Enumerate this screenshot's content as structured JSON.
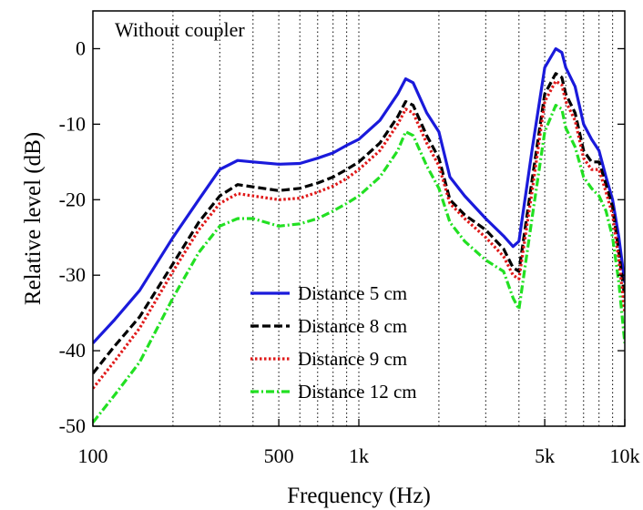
{
  "chart_data": {
    "type": "line",
    "title": "",
    "annotation": "Without coupler",
    "xlabel": "Frequency (Hz)",
    "ylabel": "Relative level (dB)",
    "x_scale": "log",
    "xlim": [
      100,
      10000
    ],
    "ylim": [
      -50,
      5
    ],
    "x_ticks": [
      {
        "value": 100,
        "label": "100"
      },
      {
        "value": 500,
        "label": "500"
      },
      {
        "value": 1000,
        "label": "1k"
      },
      {
        "value": 5000,
        "label": "5k"
      },
      {
        "value": 10000,
        "label": "10k"
      }
    ],
    "y_ticks": [
      {
        "value": 0,
        "label": "0"
      },
      {
        "value": -10,
        "label": "-10"
      },
      {
        "value": -20,
        "label": "-20"
      },
      {
        "value": -30,
        "label": "-30"
      },
      {
        "value": -40,
        "label": "-40"
      },
      {
        "value": -50,
        "label": "-50"
      }
    ],
    "grid": "vertical dotted at 100 Hz multiples",
    "grid_x": [
      200,
      300,
      400,
      500,
      600,
      700,
      800,
      900,
      1000,
      2000,
      3000,
      4000,
      5000,
      6000,
      7000,
      8000,
      9000
    ],
    "legend_position": "center-bottom",
    "series": [
      {
        "name": "Distance 5 cm",
        "color": "#1a1adb",
        "dash": "solid",
        "x": [
          100,
          120,
          150,
          200,
          250,
          300,
          350,
          400,
          500,
          600,
          700,
          800,
          900,
          1000,
          1200,
          1400,
          1500,
          1600,
          1800,
          2000,
          2200,
          2500,
          3000,
          3500,
          3800,
          4000,
          4500,
          5000,
          5500,
          5800,
          6000,
          6500,
          7000,
          7500,
          8000,
          8500,
          9000,
          9500,
          10000
        ],
        "y": [
          -39,
          -36,
          -32,
          -25,
          -20,
          -16,
          -14.8,
          -15,
          -15.3,
          -15.2,
          -14.5,
          -13.8,
          -12.8,
          -12,
          -9.5,
          -6,
          -4,
          -4.5,
          -8.5,
          -11,
          -17,
          -19.5,
          -22.5,
          -24.8,
          -26.2,
          -25.5,
          -13,
          -2.5,
          0,
          -0.5,
          -2.5,
          -5,
          -10,
          -12,
          -13.5,
          -17,
          -20,
          -25,
          -31
        ]
      },
      {
        "name": "Distance 8 cm",
        "color": "#000000",
        "dash": "dashed",
        "x": [
          100,
          120,
          150,
          200,
          250,
          300,
          350,
          400,
          500,
          600,
          700,
          800,
          900,
          1000,
          1200,
          1400,
          1500,
          1600,
          1800,
          2000,
          2200,
          2500,
          3000,
          3500,
          3800,
          4000,
          4500,
          5000,
          5500,
          5800,
          6000,
          6500,
          7000,
          7500,
          8000,
          8500,
          9000,
          9500,
          10000
        ],
        "y": [
          -43,
          -39.5,
          -35.5,
          -28.5,
          -23,
          -19.5,
          -18,
          -18.3,
          -18.8,
          -18.5,
          -17.8,
          -17,
          -16,
          -15,
          -12.5,
          -9,
          -7,
          -7.5,
          -11.5,
          -14.5,
          -20,
          -22,
          -24,
          -26.5,
          -29,
          -29.5,
          -17,
          -6,
          -3.3,
          -3.8,
          -6,
          -8.5,
          -13.5,
          -15,
          -15,
          -18,
          -21,
          -27,
          -33
        ]
      },
      {
        "name": "Distance 9 cm",
        "color": "#e01818",
        "dash": "dotted",
        "x": [
          100,
          120,
          150,
          200,
          250,
          300,
          350,
          400,
          500,
          600,
          700,
          800,
          900,
          1000,
          1200,
          1400,
          1500,
          1600,
          1800,
          2000,
          2200,
          2500,
          3000,
          3500,
          3800,
          4000,
          4500,
          5000,
          5500,
          5800,
          6000,
          6500,
          7000,
          7500,
          8000,
          8500,
          9000,
          9500,
          10000
        ],
        "y": [
          -45,
          -41.5,
          -37,
          -29.5,
          -24,
          -20.5,
          -19.2,
          -19.5,
          -20,
          -19.8,
          -19,
          -18.2,
          -17.2,
          -16,
          -13.5,
          -10,
          -8,
          -8.5,
          -12.5,
          -15.5,
          -20.5,
          -22.5,
          -25,
          -27.5,
          -30,
          -30.5,
          -18.5,
          -7,
          -4.3,
          -4.8,
          -7,
          -9.5,
          -14.5,
          -16,
          -16,
          -19,
          -22,
          -28,
          -35
        ]
      },
      {
        "name": "Distance 12 cm",
        "color": "#22e022",
        "dash": "dashdot",
        "x": [
          100,
          120,
          150,
          200,
          250,
          300,
          350,
          400,
          500,
          600,
          700,
          800,
          900,
          1000,
          1200,
          1400,
          1500,
          1600,
          1800,
          2000,
          2200,
          2500,
          3000,
          3500,
          3800,
          4000,
          4500,
          5000,
          5500,
          5800,
          6000,
          6500,
          7000,
          7500,
          8000,
          8500,
          9000,
          9500,
          10000
        ],
        "y": [
          -49.5,
          -46,
          -41.5,
          -33,
          -27,
          -23.5,
          -22.5,
          -22.5,
          -23.5,
          -23.2,
          -22.5,
          -21.5,
          -20.5,
          -19.5,
          -17,
          -13.5,
          -11,
          -11.5,
          -15.5,
          -18.5,
          -23,
          -25.5,
          -28,
          -29.5,
          -33,
          -34.5,
          -22,
          -11,
          -7.5,
          -8,
          -10.5,
          -13,
          -17,
          -18.5,
          -19.5,
          -21.5,
          -25,
          -31,
          -39
        ]
      }
    ]
  }
}
